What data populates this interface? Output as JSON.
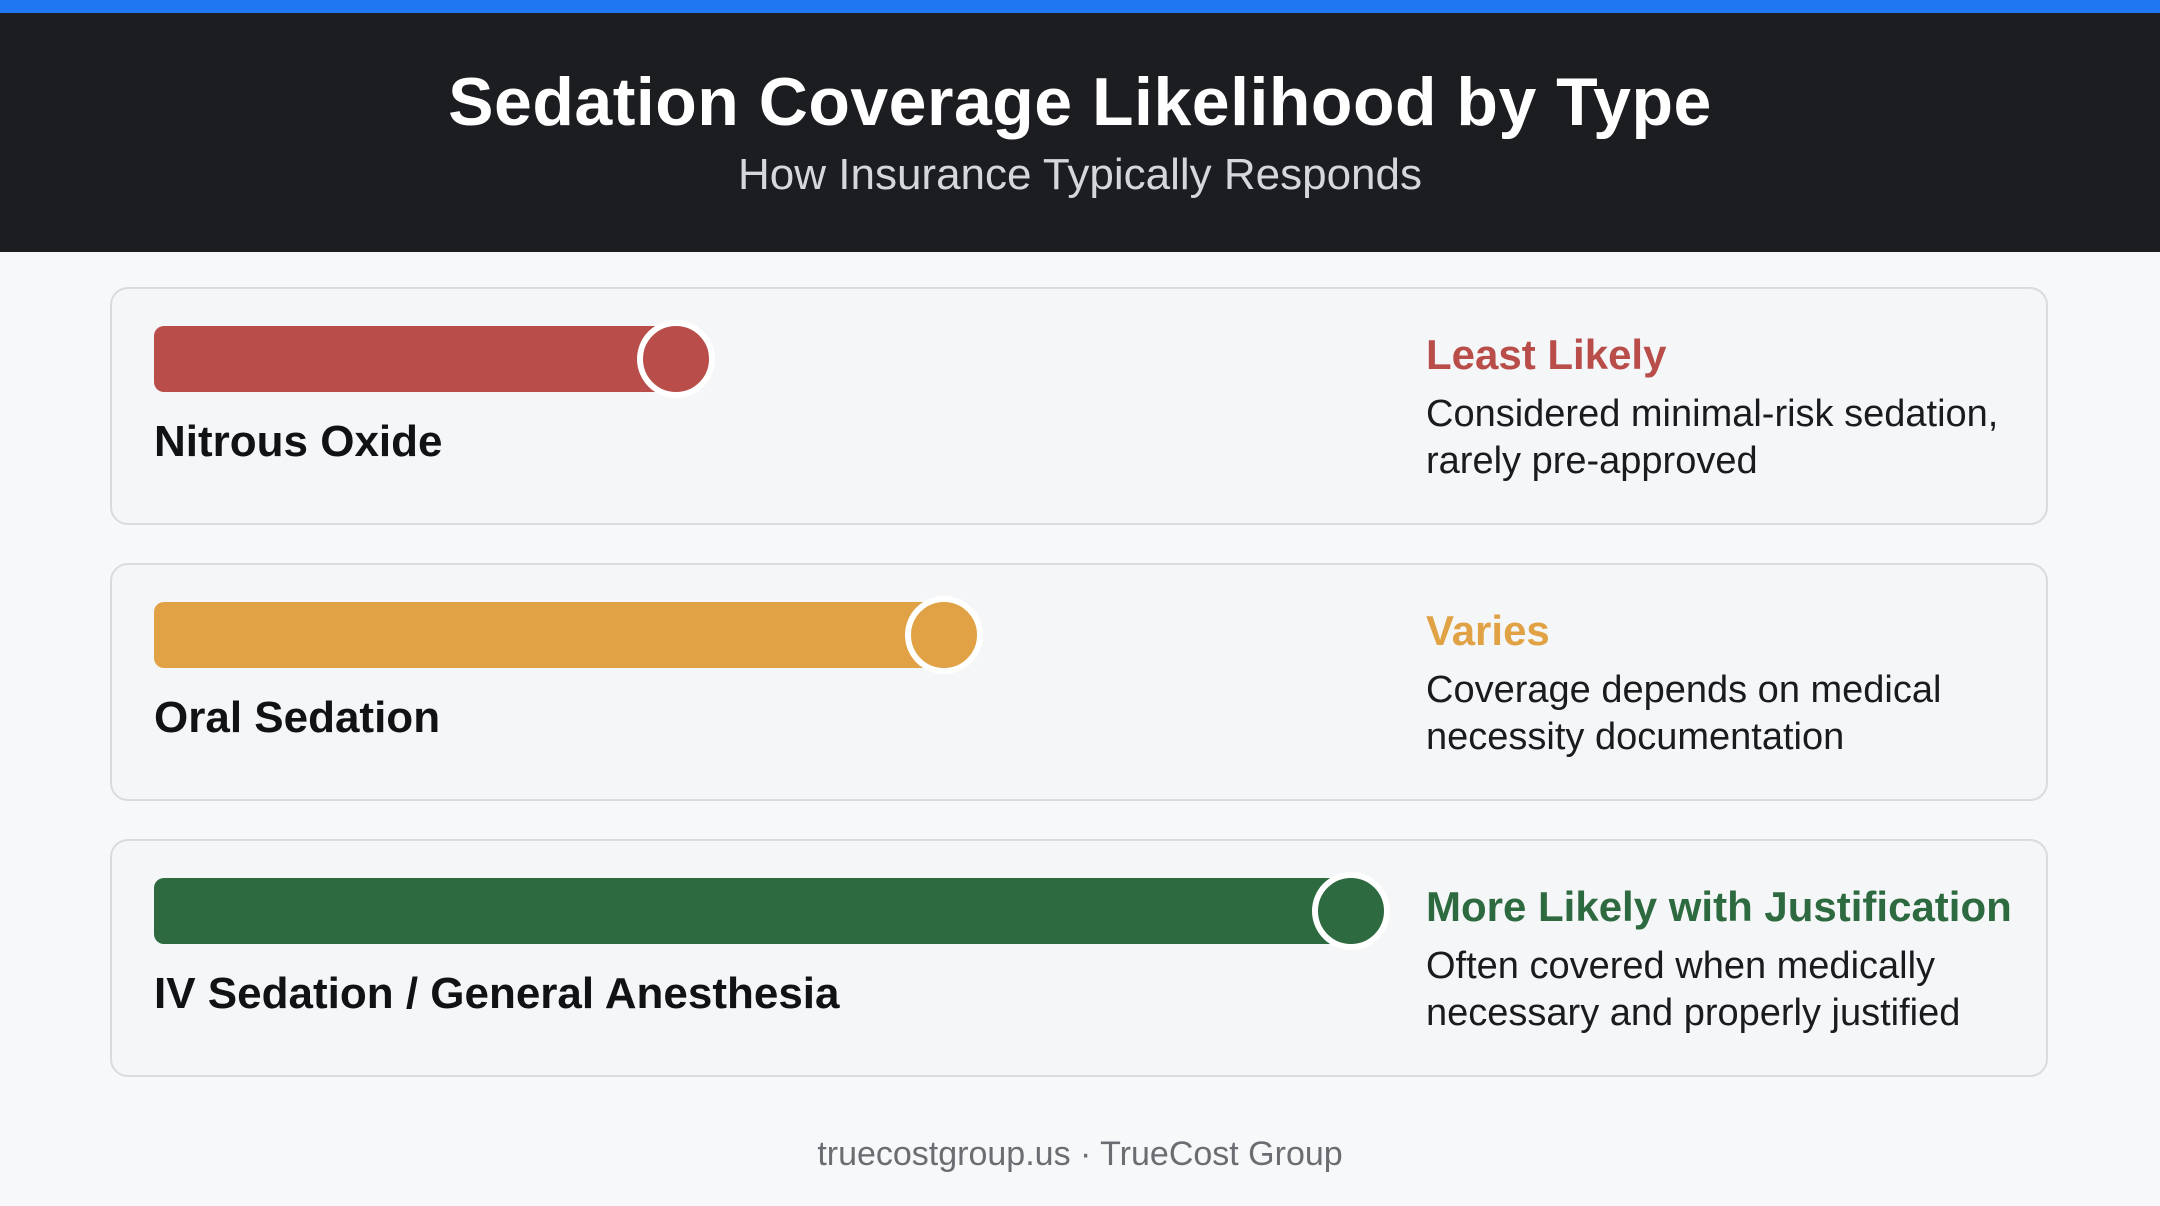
{
  "header": {
    "title": "Sedation Coverage Likelihood by Type",
    "subtitle": "How Insurance Typically Responds"
  },
  "chart_data": {
    "type": "bar",
    "title": "Sedation Coverage Likelihood by Type",
    "subtitle": "How Insurance Typically Responds",
    "xlabel": "",
    "ylabel": "",
    "ylim": [
      0,
      1
    ],
    "categories": [
      "Nitrous Oxide",
      "Oral Sedation",
      "IV Sedation / General Anesthesia"
    ],
    "values": [
      0.42,
      0.65,
      1.0
    ],
    "rows": [
      {
        "label": "Nitrous Oxide",
        "value": 0.42,
        "status": "Least Likely",
        "description": "Considered minimal-risk sedation, rarely pre-approved",
        "color": "#b84d4a"
      },
      {
        "label": "Oral Sedation",
        "value": 0.65,
        "status": "Varies",
        "description": "Coverage depends on medical necessity documentation",
        "color": "#e0a244"
      },
      {
        "label": "IV Sedation / General Anesthesia",
        "value": 1.0,
        "status": "More Likely with Justification",
        "description": "Often covered when medically necessary and properly justified",
        "color": "#2d6a3f"
      }
    ]
  },
  "footer": {
    "text": "truecostgroup.us · TrueCost Group"
  }
}
